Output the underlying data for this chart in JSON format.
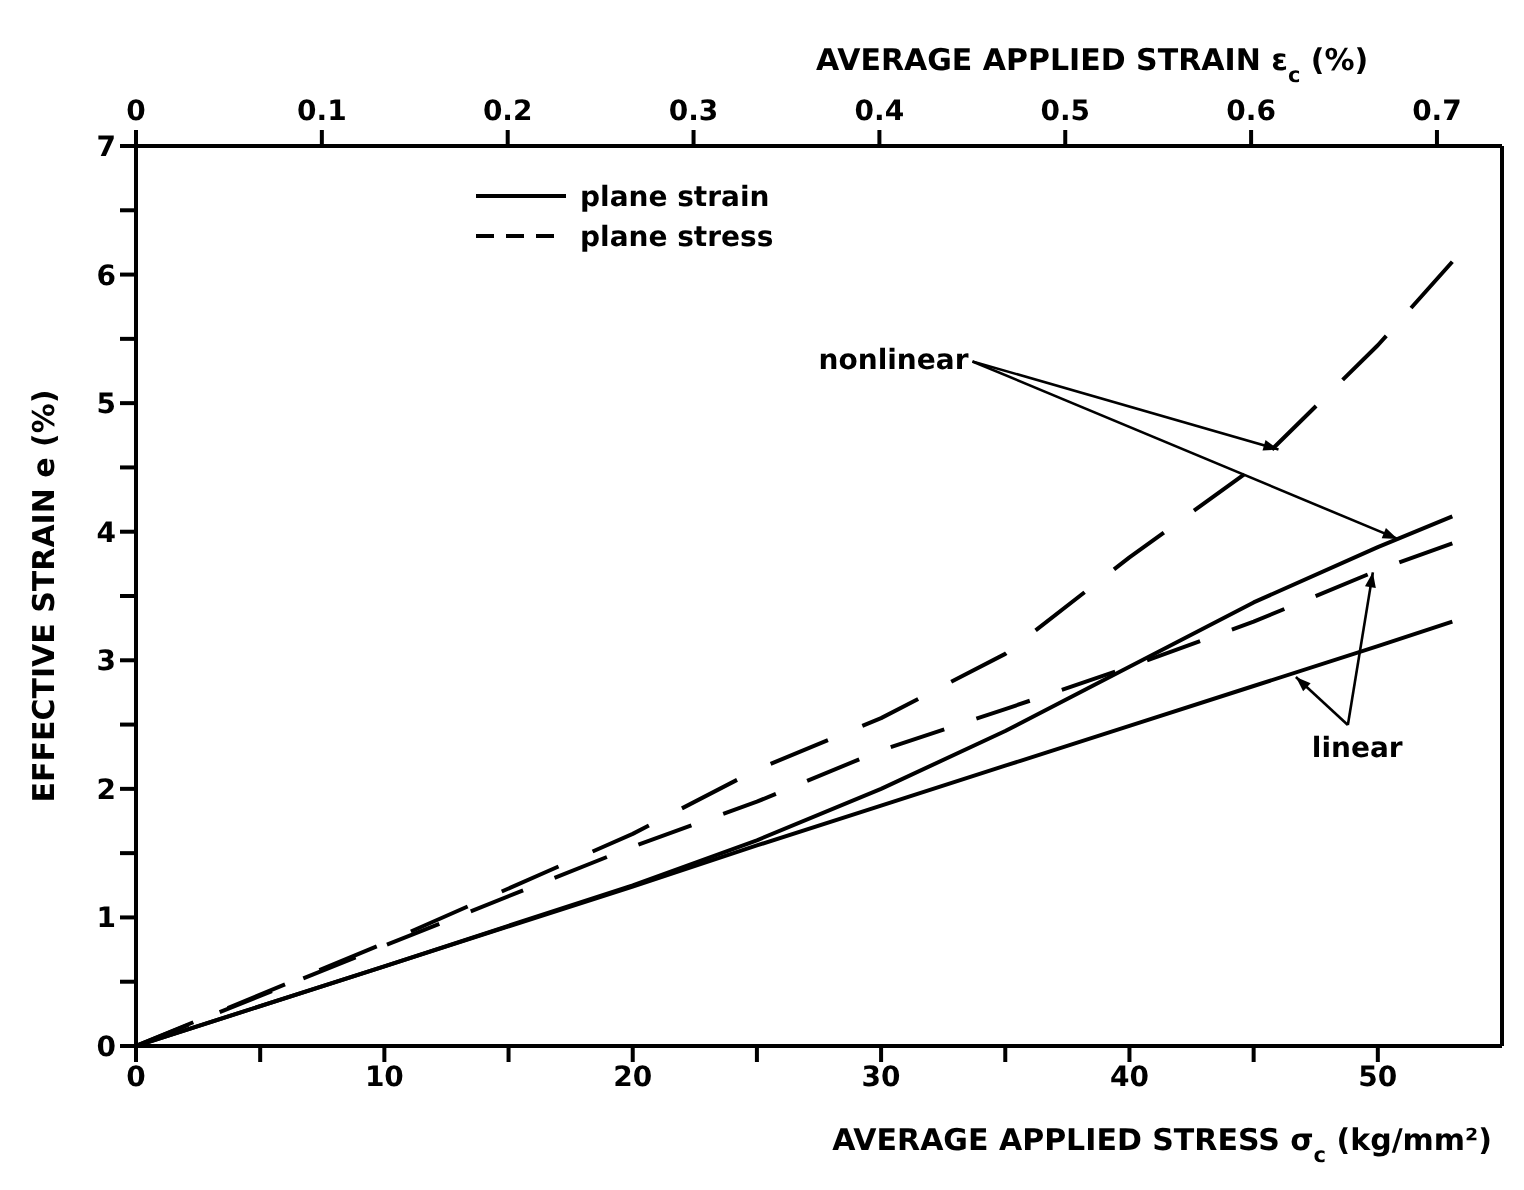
{
  "chart_data": {
    "type": "line",
    "xlabel": "AVERAGE APPLIED STRESS  σ$_{c}$  (kg/mm²)",
    "x2label": "AVERAGE APPLIED STRAIN  ε$_{c}$  (%)",
    "ylabel": "EFFECTIVE STRAIN  e  (%)",
    "x": [
      0,
      10,
      20,
      25,
      30,
      35,
      40,
      45,
      50,
      53
    ],
    "series": [
      {
        "name": "plane strain",
        "color": "#000000",
        "line_style": "solid",
        "values": [
          0,
          0.62,
          1.24,
          1.56,
          1.87,
          2.18,
          2.49,
          2.8,
          3.11,
          3.3
        ]
      },
      {
        "color": "#000000",
        "line_style": "solid",
        "values": [
          0,
          0.62,
          1.25,
          1.6,
          2.0,
          2.45,
          2.95,
          3.45,
          3.88,
          4.12
        ]
      },
      {
        "name": "plane stress",
        "color": "#000000",
        "line_style": "dashed",
        "values": [
          0,
          0.78,
          1.55,
          1.9,
          2.3,
          2.62,
          2.95,
          3.3,
          3.7,
          3.91
        ]
      },
      {
        "color": "#000000",
        "line_style": "dashed",
        "values": [
          0,
          0.8,
          1.65,
          2.15,
          2.55,
          3.05,
          3.8,
          4.5,
          5.45,
          6.1
        ]
      }
    ],
    "annotations": [
      {
        "text": "nonlinear",
        "x": 46,
        "y": 4.64
      },
      {
        "text": "linear",
        "x": 46.7,
        "y": 2.87
      }
    ],
    "xlim": [
      0,
      55
    ],
    "xticks": [
      0,
      {
        "value": 5,
        "label": null
      },
      10,
      {
        "value": 15,
        "label": null
      },
      20,
      {
        "value": 25,
        "label": null
      },
      30,
      {
        "value": 35,
        "label": null
      },
      40,
      {
        "value": 45,
        "label": null
      },
      50
    ],
    "x2lim": [
      0,
      0.735
    ],
    "x2ticks": [
      0,
      0.1,
      0.2,
      0.3,
      0.4,
      0.5,
      0.6,
      0.7
    ],
    "ylim": [
      0,
      7
    ],
    "yticks": [
      0,
      {
        "value": 0.5,
        "label": null
      },
      1,
      {
        "value": 1.5,
        "label": null
      },
      2,
      {
        "value": 2.5,
        "label": null
      },
      3,
      {
        "value": 3.5,
        "label": null
      },
      4,
      {
        "value": 4.5,
        "label": null
      },
      5,
      {
        "value": 5.5,
        "label": null
      },
      6,
      {
        "value": 6.5,
        "label": null
      },
      7
    ],
    "legend": "top left",
    "grid": false,
    "marker": "none"
  }
}
